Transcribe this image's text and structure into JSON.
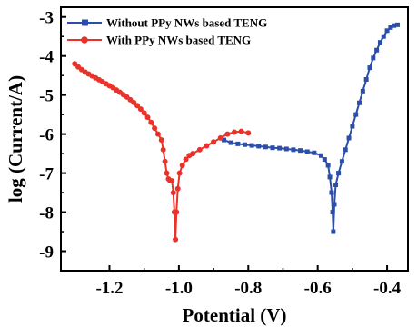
{
  "chart_data": {
    "type": "line",
    "xlabel": "Potential (V)",
    "ylabel": "log (Current/A)",
    "xlim": [
      -1.34,
      -0.34
    ],
    "ylim": [
      -9.5,
      -2.75
    ],
    "x_ticks": [
      -1.2,
      -1.0,
      -0.8,
      -0.6,
      -0.4
    ],
    "y_ticks": [
      -9,
      -8,
      -7,
      -6,
      -5,
      -4,
      -3
    ],
    "x_tick_labels": [
      "-1.2",
      "-1.0",
      "-0.8",
      "-0.6",
      "-0.4"
    ],
    "y_tick_labels": [
      "-9",
      "-8",
      "-7",
      "-6",
      "-5",
      "-4",
      "-3"
    ],
    "legend_position": "top-left",
    "grid": false,
    "series": [
      {
        "name": "Without PPy NWs based TENG",
        "color": "#2b4ea8",
        "marker": "square",
        "points": [
          [
            -0.87,
            -6.15
          ],
          [
            -0.85,
            -6.22
          ],
          [
            -0.83,
            -6.25
          ],
          [
            -0.81,
            -6.27
          ],
          [
            -0.79,
            -6.29
          ],
          [
            -0.77,
            -6.31
          ],
          [
            -0.75,
            -6.33
          ],
          [
            -0.73,
            -6.35
          ],
          [
            -0.71,
            -6.36
          ],
          [
            -0.69,
            -6.38
          ],
          [
            -0.67,
            -6.4
          ],
          [
            -0.65,
            -6.42
          ],
          [
            -0.63,
            -6.45
          ],
          [
            -0.61,
            -6.48
          ],
          [
            -0.59,
            -6.55
          ],
          [
            -0.58,
            -6.65
          ],
          [
            -0.57,
            -6.8
          ],
          [
            -0.565,
            -7.1
          ],
          [
            -0.56,
            -7.5
          ],
          [
            -0.557,
            -8.0
          ],
          [
            -0.555,
            -8.5
          ],
          [
            -0.552,
            -7.8
          ],
          [
            -0.548,
            -7.3
          ],
          [
            -0.54,
            -7.0
          ],
          [
            -0.53,
            -6.7
          ],
          [
            -0.52,
            -6.4
          ],
          [
            -0.51,
            -6.1
          ],
          [
            -0.5,
            -5.8
          ],
          [
            -0.49,
            -5.5
          ],
          [
            -0.48,
            -5.2
          ],
          [
            -0.47,
            -4.9
          ],
          [
            -0.46,
            -4.6
          ],
          [
            -0.45,
            -4.3
          ],
          [
            -0.44,
            -4.05
          ],
          [
            -0.43,
            -3.85
          ],
          [
            -0.42,
            -3.65
          ],
          [
            -0.41,
            -3.5
          ],
          [
            -0.4,
            -3.35
          ],
          [
            -0.39,
            -3.27
          ],
          [
            -0.38,
            -3.22
          ],
          [
            -0.37,
            -3.2
          ]
        ]
      },
      {
        "name": "With PPy NWs based TENG",
        "color": "#e8322a",
        "marker": "circle",
        "points": [
          [
            -1.3,
            -4.2
          ],
          [
            -1.29,
            -4.28
          ],
          [
            -1.28,
            -4.35
          ],
          [
            -1.27,
            -4.41
          ],
          [
            -1.26,
            -4.46
          ],
          [
            -1.25,
            -4.51
          ],
          [
            -1.24,
            -4.56
          ],
          [
            -1.23,
            -4.61
          ],
          [
            -1.22,
            -4.66
          ],
          [
            -1.21,
            -4.71
          ],
          [
            -1.2,
            -4.76
          ],
          [
            -1.19,
            -4.81
          ],
          [
            -1.18,
            -4.87
          ],
          [
            -1.17,
            -4.93
          ],
          [
            -1.16,
            -4.99
          ],
          [
            -1.15,
            -5.05
          ],
          [
            -1.14,
            -5.12
          ],
          [
            -1.13,
            -5.19
          ],
          [
            -1.12,
            -5.27
          ],
          [
            -1.11,
            -5.36
          ],
          [
            -1.1,
            -5.46
          ],
          [
            -1.09,
            -5.57
          ],
          [
            -1.08,
            -5.7
          ],
          [
            -1.07,
            -5.85
          ],
          [
            -1.06,
            -6.0
          ],
          [
            -1.05,
            -6.15
          ],
          [
            -1.045,
            -6.4
          ],
          [
            -1.04,
            -6.7
          ],
          [
            -1.035,
            -7.0
          ],
          [
            -1.03,
            -7.15
          ],
          [
            -1.025,
            -7.2
          ],
          [
            -1.02,
            -7.2
          ],
          [
            -1.016,
            -7.5
          ],
          [
            -1.013,
            -8.0
          ],
          [
            -1.01,
            -8.7
          ],
          [
            -1.007,
            -8.0
          ],
          [
            -1.003,
            -7.4
          ],
          [
            -0.998,
            -7.0
          ],
          [
            -0.99,
            -6.8
          ],
          [
            -0.98,
            -6.65
          ],
          [
            -0.97,
            -6.55
          ],
          [
            -0.96,
            -6.5
          ],
          [
            -0.94,
            -6.4
          ],
          [
            -0.92,
            -6.3
          ],
          [
            -0.9,
            -6.2
          ],
          [
            -0.88,
            -6.1
          ],
          [
            -0.86,
            -6.0
          ],
          [
            -0.84,
            -5.95
          ],
          [
            -0.82,
            -5.93
          ],
          [
            -0.8,
            -5.97
          ]
        ]
      }
    ]
  }
}
